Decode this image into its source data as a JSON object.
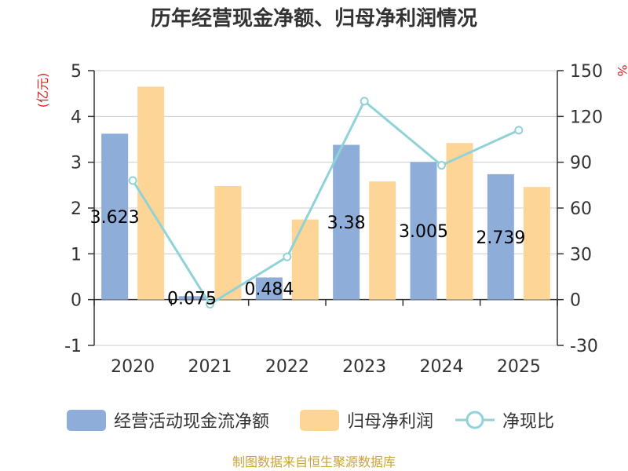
{
  "chart_data": {
    "type": "bar+line",
    "title": "历年经营现金净额、归母净利润情况",
    "categories": [
      "2020",
      "2021",
      "2022",
      "2023",
      "2024",
      "2025"
    ],
    "series": [
      {
        "name": "经营活动现金流净额",
        "type": "bar",
        "axis": "left",
        "color": "#8eadd9",
        "values": [
          3.623,
          0.075,
          0.484,
          3.38,
          3.005,
          2.739
        ],
        "labels": [
          "3.623",
          "0.075",
          "0.484",
          "3.38",
          "3.005",
          "2.739"
        ]
      },
      {
        "name": "归母净利润",
        "type": "bar",
        "axis": "left",
        "color": "#fdd596",
        "values": [
          4.65,
          2.48,
          1.75,
          2.58,
          3.42,
          2.46
        ]
      },
      {
        "name": "净现比",
        "type": "line",
        "axis": "right",
        "color": "#8fd3d8",
        "values": [
          78,
          -3,
          28,
          130,
          88,
          111
        ]
      }
    ],
    "left_axis": {
      "unit": "(亿元)",
      "min": -1,
      "max": 5,
      "ticks": [
        5,
        4,
        3,
        2,
        1,
        0,
        -1
      ]
    },
    "right_axis": {
      "unit": "%",
      "min": -30,
      "max": 150,
      "ticks": [
        150,
        120,
        90,
        60,
        30,
        0,
        -30
      ]
    },
    "legend_position": "bottom"
  },
  "footer": {
    "source": "制图数据来自恒生聚源数据库"
  }
}
